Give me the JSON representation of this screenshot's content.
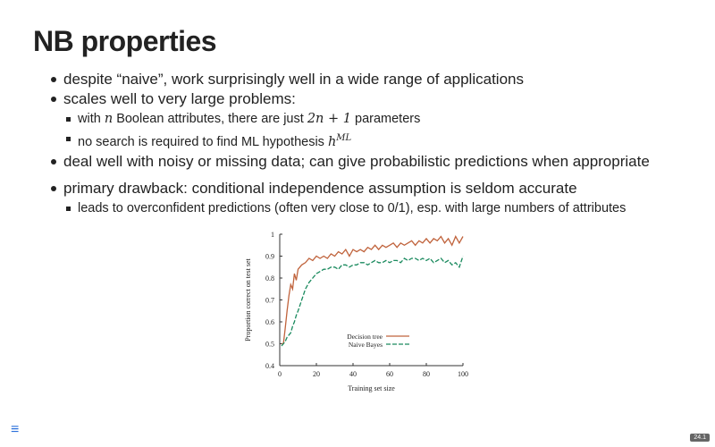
{
  "slide": {
    "title": "NB properties",
    "bullets": {
      "b1": "despite “naive”, work surprisingly well in a wide range of applications",
      "b2": "scales well to very large problems:",
      "b2_sub1_pre": "with ",
      "b2_sub1_n": "n",
      "b2_sub1_mid": " Boolean attributes, there are just ",
      "b2_sub1_expr": "2n + 1",
      "b2_sub1_post": " parameters",
      "b2_sub2_pre": "no search is required to find ML hypothesis ",
      "b2_sub2_h": "h",
      "b2_sub2_sup": "ML",
      "b3": "deal well with noisy or missing data; can give probabilistic predictions when appropriate",
      "b4": "primary drawback: conditional independence assumption is seldom accurate",
      "b4_sub1": "leads to overconfident predictions (often very close to 0/1), esp. with large numbers of attributes"
    },
    "menu_icon": "≡",
    "page_number": "24.1"
  },
  "chart_data": {
    "type": "line",
    "xlabel": "Training set size",
    "ylabel": "Proportion correct on test set",
    "xlim": [
      0,
      100
    ],
    "ylim": [
      0.4,
      1.0
    ],
    "xticks": [
      "0",
      "20",
      "40",
      "60",
      "80",
      "100"
    ],
    "yticks": [
      "0.4",
      "0.5",
      "0.6",
      "0.7",
      "0.8",
      "0.9",
      "1"
    ],
    "legend_position": "lower-center",
    "series": [
      {
        "name": "Decision tree",
        "color": "#c0633c",
        "dash": "solid",
        "x": [
          1,
          2,
          3,
          4,
          5,
          6,
          7,
          8,
          9,
          10,
          12,
          14,
          16,
          18,
          20,
          22,
          24,
          26,
          28,
          30,
          32,
          34,
          36,
          38,
          40,
          42,
          44,
          46,
          48,
          50,
          52,
          54,
          56,
          58,
          60,
          62,
          64,
          66,
          68,
          70,
          72,
          74,
          76,
          78,
          80,
          82,
          84,
          86,
          88,
          90,
          92,
          94,
          96,
          98,
          100
        ],
        "y": [
          0.5,
          0.5,
          0.57,
          0.65,
          0.72,
          0.77,
          0.75,
          0.82,
          0.79,
          0.84,
          0.86,
          0.87,
          0.89,
          0.88,
          0.9,
          0.89,
          0.9,
          0.89,
          0.91,
          0.9,
          0.92,
          0.91,
          0.93,
          0.9,
          0.93,
          0.92,
          0.93,
          0.92,
          0.94,
          0.93,
          0.95,
          0.93,
          0.95,
          0.94,
          0.95,
          0.96,
          0.94,
          0.96,
          0.95,
          0.96,
          0.97,
          0.95,
          0.97,
          0.96,
          0.98,
          0.96,
          0.98,
          0.97,
          0.99,
          0.96,
          0.98,
          0.95,
          0.99,
          0.96,
          0.99
        ]
      },
      {
        "name": "Naive Bayes",
        "color": "#1a8a5e",
        "dash": "dashed",
        "x": [
          1,
          2,
          3,
          4,
          5,
          6,
          7,
          8,
          9,
          10,
          12,
          14,
          16,
          18,
          20,
          22,
          24,
          26,
          28,
          30,
          32,
          34,
          36,
          38,
          40,
          42,
          44,
          46,
          48,
          50,
          52,
          54,
          56,
          58,
          60,
          62,
          64,
          66,
          68,
          70,
          72,
          74,
          76,
          78,
          80,
          82,
          84,
          86,
          88,
          90,
          92,
          94,
          96,
          98,
          100
        ],
        "y": [
          0.49,
          0.5,
          0.51,
          0.53,
          0.54,
          0.55,
          0.58,
          0.6,
          0.63,
          0.65,
          0.7,
          0.75,
          0.78,
          0.8,
          0.82,
          0.83,
          0.84,
          0.84,
          0.85,
          0.85,
          0.84,
          0.86,
          0.86,
          0.85,
          0.86,
          0.86,
          0.87,
          0.87,
          0.86,
          0.87,
          0.88,
          0.87,
          0.87,
          0.88,
          0.87,
          0.88,
          0.88,
          0.87,
          0.89,
          0.88,
          0.89,
          0.89,
          0.88,
          0.89,
          0.88,
          0.89,
          0.87,
          0.88,
          0.89,
          0.87,
          0.88,
          0.86,
          0.87,
          0.85,
          0.9
        ]
      }
    ]
  }
}
